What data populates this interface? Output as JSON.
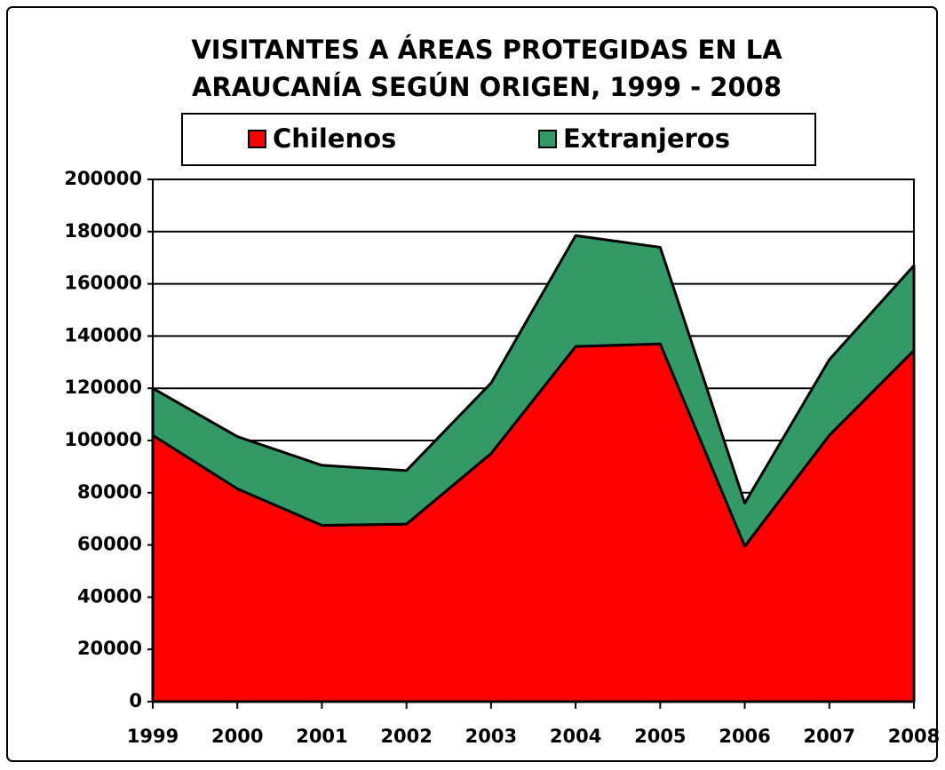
{
  "chart_data": {
    "type": "stacked_area",
    "title": [
      "VISITANTES A ÁREAS PROTEGIDAS EN LA",
      "ARAUCANÍA SEGÚN ORIGEN, 1999 - 2008"
    ],
    "categories": [
      "1999",
      "2000",
      "2001",
      "2002",
      "2003",
      "2004",
      "2005",
      "2006",
      "2007",
      "2008"
    ],
    "series": [
      {
        "name": "Chilenos",
        "color": "#ff0000",
        "values": [
          102000,
          81500,
          67500,
          68000,
          95000,
          136000,
          137000,
          59500,
          102000,
          134500
        ]
      },
      {
        "name": "Extranjeros",
        "color": "#339966",
        "values": [
          18000,
          20000,
          23000,
          20500,
          27000,
          42500,
          37000,
          16500,
          29000,
          32500
        ]
      }
    ],
    "ylim": [
      0,
      200000
    ],
    "yticks": [
      0,
      20000,
      40000,
      60000,
      80000,
      100000,
      120000,
      140000,
      160000,
      180000,
      200000
    ],
    "grid": true,
    "legend": "top"
  }
}
